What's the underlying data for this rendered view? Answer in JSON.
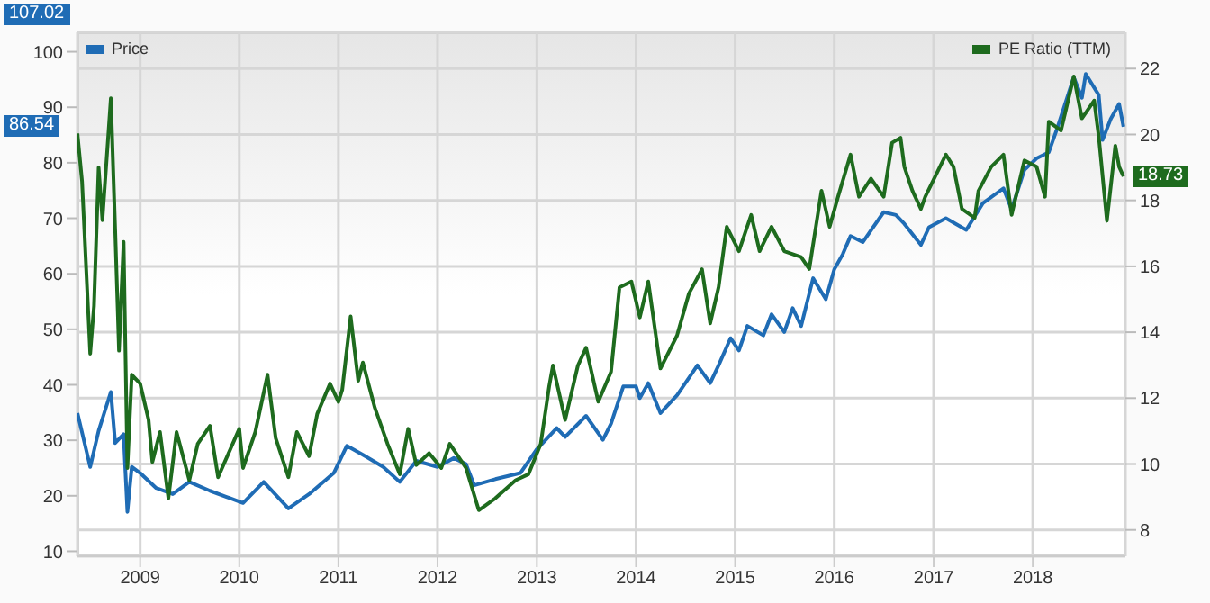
{
  "chart_data": {
    "type": "line",
    "xlim": [
      "2008-05-15",
      "2018-12-08"
    ],
    "xticks": [
      {
        "value": "2009-01-01",
        "label": "2009"
      },
      {
        "value": "2010-01-01",
        "label": "2010"
      },
      {
        "value": "2011-01-01",
        "label": "2011"
      },
      {
        "value": "2012-01-01",
        "label": "2012"
      },
      {
        "value": "2013-01-01",
        "label": "2013"
      },
      {
        "value": "2014-01-01",
        "label": "2014"
      },
      {
        "value": "2015-01-01",
        "label": "2015"
      },
      {
        "value": "2016-01-01",
        "label": "2016"
      },
      {
        "value": "2017-01-01",
        "label": "2017"
      },
      {
        "value": "2018-01-01",
        "label": "2018"
      }
    ],
    "ylim": [
      9.1,
      103.5
    ],
    "yticks": [
      10,
      20,
      30,
      40,
      50,
      60,
      70,
      80,
      90,
      100
    ],
    "y2lim": [
      7.2,
      23.1
    ],
    "y2ticks": [
      8,
      10,
      12,
      14,
      16,
      18,
      20,
      22
    ],
    "grid": true,
    "legend": "top",
    "marker": "none",
    "line_style": "solid",
    "annotations": [
      "107.02",
      "86.54",
      "18.73"
    ],
    "series": [
      {
        "name": "Price",
        "color": "#1f6cb5",
        "x": [
          "2008-05-15",
          "2008-07-01",
          "2008-08-01",
          "2008-09-15",
          "2008-10-01",
          "2008-11-01",
          "2008-11-15",
          "2008-12-01",
          "2009-01-01",
          "2009-03-01",
          "2009-05-01",
          "2009-07-01",
          "2009-09-15",
          "2009-11-15",
          "2010-01-15",
          "2010-04-01",
          "2010-07-01",
          "2010-09-15",
          "2010-12-15",
          "2011-02-01",
          "2011-04-01",
          "2011-06-15",
          "2011-08-15",
          "2011-10-15",
          "2012-01-01",
          "2012-03-01",
          "2012-04-15",
          "2012-05-15",
          "2012-08-01",
          "2012-11-01",
          "2013-01-01",
          "2013-03-15",
          "2013-04-15",
          "2013-07-01",
          "2013-09-01",
          "2013-10-01",
          "2013-11-15",
          "2014-01-01",
          "2014-01-15",
          "2014-02-15",
          "2014-04-01",
          "2014-06-01",
          "2014-08-15",
          "2014-10-01",
          "2014-11-01",
          "2014-12-15",
          "2015-01-15",
          "2015-02-15",
          "2015-04-15",
          "2015-05-15",
          "2015-07-01",
          "2015-08-01",
          "2015-09-01",
          "2015-10-15",
          "2015-12-01",
          "2016-01-01",
          "2016-02-01",
          "2016-03-01",
          "2016-04-15",
          "2016-07-01",
          "2016-08-15",
          "2016-09-15",
          "2016-11-15",
          "2016-12-15",
          "2017-02-15",
          "2017-05-01",
          "2017-07-01",
          "2017-09-15",
          "2017-10-15",
          "2017-12-01",
          "2018-01-15",
          "2018-03-01",
          "2018-04-01",
          "2018-06-01",
          "2018-07-01",
          "2018-07-15",
          "2018-09-01",
          "2018-09-15",
          "2018-10-15",
          "2018-11-15",
          "2018-12-01"
        ],
        "values": [
          34.9,
          25.2,
          31.7,
          38.7,
          29.5,
          31.1,
          17.1,
          25.2,
          24.1,
          21.4,
          20.3,
          22.5,
          20.9,
          19.8,
          18.7,
          22.5,
          17.7,
          20.3,
          24.1,
          29.0,
          27.4,
          25.2,
          22.5,
          26.3,
          25.2,
          26.8,
          25.7,
          21.9,
          23.0,
          24.1,
          28.4,
          32.2,
          30.6,
          34.4,
          30.1,
          33.0,
          39.7,
          39.7,
          37.6,
          40.3,
          34.9,
          38.1,
          43.5,
          40.3,
          43.5,
          48.4,
          46.2,
          50.6,
          48.9,
          52.7,
          49.5,
          53.8,
          50.6,
          59.2,
          55.4,
          60.8,
          63.5,
          66.8,
          65.7,
          71.1,
          70.6,
          69.0,
          65.2,
          68.4,
          70.0,
          67.9,
          72.7,
          75.4,
          71.6,
          78.7,
          80.8,
          81.9,
          86.2,
          95.4,
          91.7,
          96.0,
          92.2,
          84.1,
          87.9,
          90.6,
          86.5
        ]
      },
      {
        "name": "PE Ratio (TTM)",
        "color": "#1e6b1e",
        "axis": "y2",
        "x": [
          "2008-05-15",
          "2008-06-01",
          "2008-07-01",
          "2008-07-15",
          "2008-08-01",
          "2008-08-15",
          "2008-09-15",
          "2008-10-01",
          "2008-10-15",
          "2008-11-01",
          "2008-11-15",
          "2008-12-01",
          "2009-01-01",
          "2009-02-01",
          "2009-02-15",
          "2009-03-15",
          "2009-04-15",
          "2009-05-15",
          "2009-07-01",
          "2009-08-01",
          "2009-09-15",
          "2009-10-15",
          "2010-01-01",
          "2010-01-15",
          "2010-03-01",
          "2010-04-15",
          "2010-05-15",
          "2010-07-01",
          "2010-08-01",
          "2010-09-15",
          "2010-10-15",
          "2010-12-01",
          "2011-01-01",
          "2011-01-15",
          "2011-02-15",
          "2011-03-15",
          "2011-04-01",
          "2011-05-15",
          "2011-07-01",
          "2011-08-15",
          "2011-09-15",
          "2011-10-15",
          "2011-12-01",
          "2012-01-15",
          "2012-02-15",
          "2012-04-15",
          "2012-06-01",
          "2012-08-01",
          "2012-10-15",
          "2012-12-01",
          "2013-01-15",
          "2013-02-15",
          "2013-03-01",
          "2013-04-15",
          "2013-06-01",
          "2013-07-01",
          "2013-08-15",
          "2013-10-01",
          "2013-11-01",
          "2013-12-15",
          "2014-01-15",
          "2014-02-15",
          "2014-04-01",
          "2014-06-01",
          "2014-07-15",
          "2014-09-01",
          "2014-10-01",
          "2014-11-01",
          "2014-12-01",
          "2015-01-15",
          "2015-03-01",
          "2015-04-01",
          "2015-05-15",
          "2015-07-01",
          "2015-09-01",
          "2015-10-01",
          "2015-11-15",
          "2015-12-15",
          "2016-01-15",
          "2016-03-01",
          "2016-04-01",
          "2016-05-15",
          "2016-07-01",
          "2016-08-01",
          "2016-09-01",
          "2016-09-15",
          "2016-10-15",
          "2016-11-15",
          "2016-12-01",
          "2017-02-15",
          "2017-03-15",
          "2017-04-15",
          "2017-06-01",
          "2017-06-15",
          "2017-08-01",
          "2017-09-15",
          "2017-10-15",
          "2017-12-01",
          "2018-01-15",
          "2018-02-15",
          "2018-03-01",
          "2018-04-15",
          "2018-06-01",
          "2018-07-01",
          "2018-08-15",
          "2018-09-01",
          "2018-10-01",
          "2018-11-01",
          "2018-11-15",
          "2018-12-01"
        ],
        "values": [
          20.03,
          18.57,
          13.35,
          14.8,
          19.0,
          17.4,
          21.1,
          17.1,
          13.44,
          16.74,
          9.88,
          12.71,
          12.44,
          11.34,
          10.06,
          10.97,
          8.96,
          10.97,
          9.51,
          10.61,
          11.16,
          9.6,
          11.07,
          9.88,
          10.97,
          12.71,
          10.79,
          9.6,
          10.97,
          10.24,
          11.52,
          12.44,
          11.89,
          12.25,
          14.48,
          12.53,
          13.08,
          11.71,
          10.61,
          9.69,
          11.07,
          9.97,
          10.33,
          9.88,
          10.61,
          9.88,
          8.6,
          8.96,
          9.51,
          9.69,
          10.61,
          12.35,
          12.99,
          11.34,
          12.99,
          13.53,
          11.89,
          12.8,
          15.36,
          15.54,
          14.45,
          15.54,
          12.9,
          13.9,
          15.18,
          15.91,
          14.27,
          15.37,
          17.2,
          16.46,
          17.56,
          16.46,
          17.2,
          16.46,
          16.28,
          15.92,
          18.29,
          17.2,
          18.11,
          19.39,
          18.11,
          18.66,
          18.11,
          19.75,
          19.9,
          19.02,
          18.29,
          17.74,
          18.11,
          19.39,
          19.02,
          17.74,
          17.47,
          18.29,
          19.02,
          19.39,
          17.56,
          19.21,
          19.02,
          18.11,
          20.39,
          20.12,
          21.76,
          20.49,
          21.03,
          19.94,
          17.38,
          19.66,
          19.02,
          18.73
        ]
      }
    ]
  }
}
